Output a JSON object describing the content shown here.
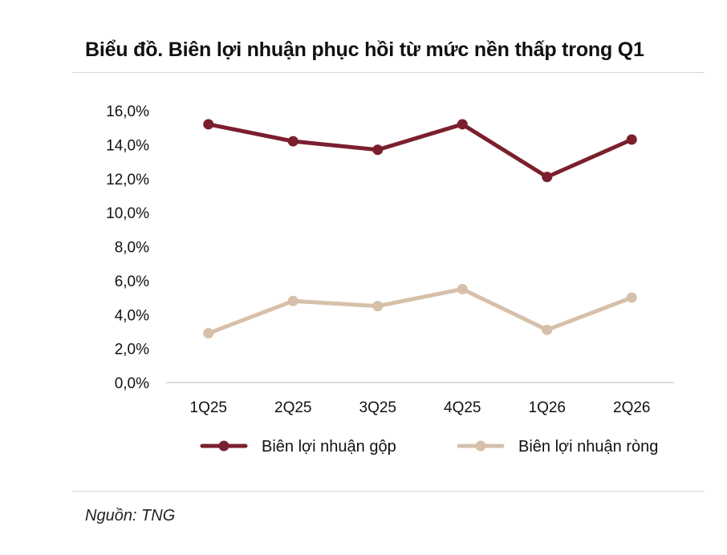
{
  "title": "Biểu đồ. Biên lợi nhuận phục hồi từ mức nền thấp trong Q1",
  "source": "Nguồn: TNG",
  "chart_data": {
    "type": "line",
    "categories": [
      "1Q25",
      "2Q25",
      "3Q25",
      "4Q25",
      "1Q26",
      "2Q26"
    ],
    "series": [
      {
        "name": "Biên lợi nhuận gộp",
        "color": "#7b1f2e",
        "values": [
          15.2,
          14.2,
          13.7,
          15.2,
          12.1,
          14.3
        ]
      },
      {
        "name": "Biên lợi nhuận ròng",
        "color": "#d6c0a9",
        "values": [
          2.9,
          4.8,
          4.5,
          5.5,
          3.1,
          5.0
        ]
      }
    ],
    "ylim": [
      0,
      16
    ],
    "yticks": [
      "0,0%",
      "2,0%",
      "4,0%",
      "6,0%",
      "8,0%",
      "10,0%",
      "12,0%",
      "14,0%",
      "16,0%"
    ],
    "grid": false,
    "legend": "bottom"
  }
}
